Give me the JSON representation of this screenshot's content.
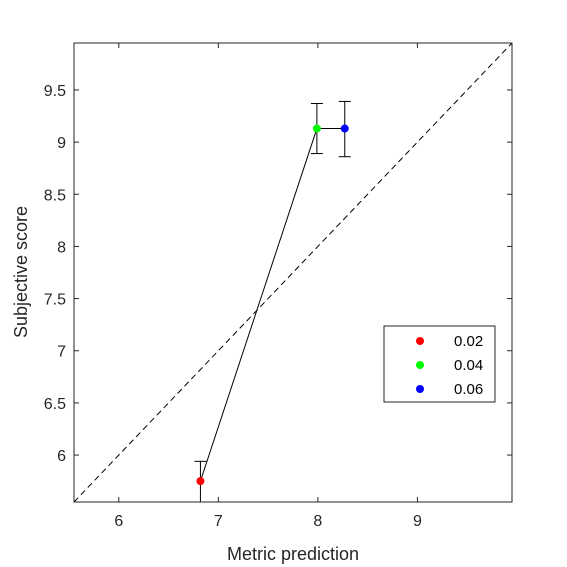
{
  "chart_data": {
    "type": "scatter",
    "xlabel": "Metric prediction",
    "ylabel": "Subjective score",
    "xlim": [
      5.55,
      9.95
    ],
    "ylim": [
      5.55,
      9.95
    ],
    "xticks": [
      "6",
      "7",
      "8",
      "9"
    ],
    "yticks": [
      "6",
      "6.5",
      "7",
      "7.5",
      "8",
      "8.5",
      "9",
      "9.5"
    ],
    "grid": false,
    "legend_position": "right",
    "reference_line": "y = x (dashed)",
    "connecting_line": true,
    "series": [
      {
        "name": "0.02",
        "color": "#ff0000",
        "x": 6.82,
        "y": 5.75,
        "err_low": 5.55,
        "err_high": 5.94
      },
      {
        "name": "0.04",
        "color": "#00ff00",
        "x": 7.99,
        "y": 9.13,
        "err_low": 8.89,
        "err_high": 9.37
      },
      {
        "name": "0.06",
        "color": "#0000ff",
        "x": 8.27,
        "y": 9.13,
        "err_low": 8.86,
        "err_high": 9.39
      }
    ]
  }
}
